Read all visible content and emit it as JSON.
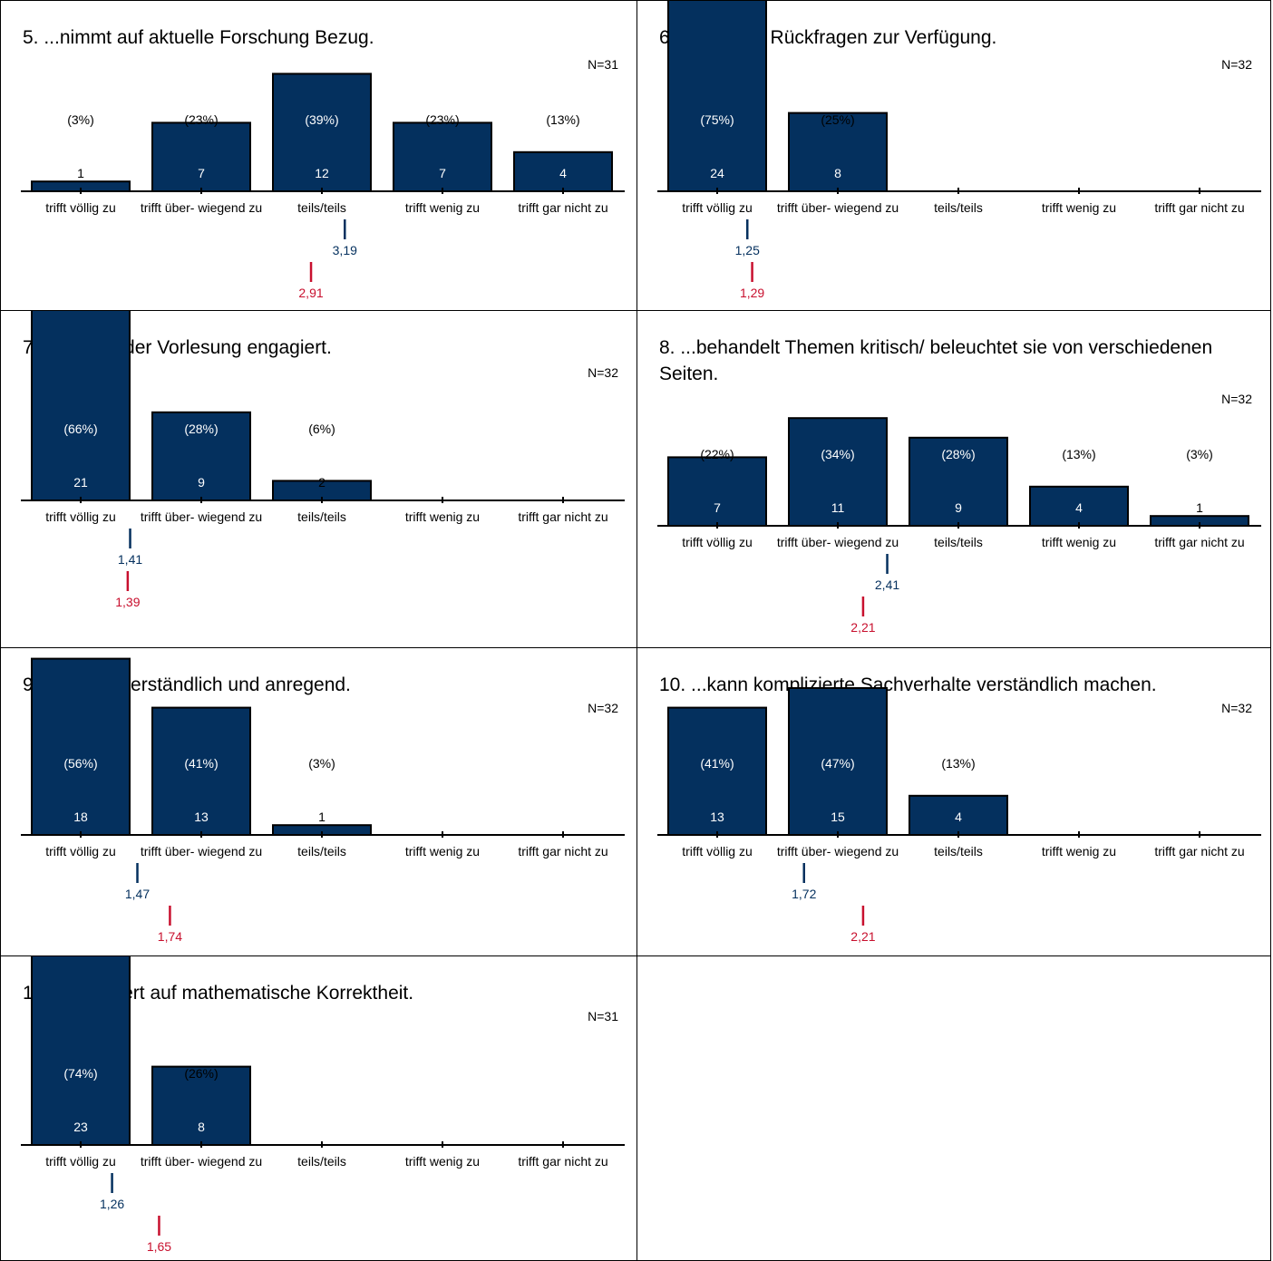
{
  "categories": [
    "trifft völlig zu",
    "trifft über- wiegend zu",
    "teils/teils",
    "trifft wenig zu",
    "trifft gar nicht zu"
  ],
  "colors": {
    "bar": "#04305e",
    "bar_edge": "#000000",
    "mean_current": "#04305e",
    "mean_previous": "#c8102e"
  },
  "chart_data": [
    {
      "type": "bar",
      "title": "5. ...nimmt auf aktuelle Forschung Bezug.",
      "n_label": "N=31",
      "values": [
        1,
        7,
        12,
        7,
        4
      ],
      "percents": [
        "(3%)",
        "(23%)",
        "(39%)",
        "(23%)",
        "(13%)"
      ],
      "mean": {
        "value": 3.19,
        "label": "3,19"
      },
      "mean_previous": {
        "value": 2.91,
        "label": "2,91"
      }
    },
    {
      "type": "bar",
      "title": "6. ...steht für Rückfragen zur Verfügung.",
      "n_label": "N=32",
      "values": [
        24,
        8,
        0,
        0,
        0
      ],
      "percents": [
        "(75%)",
        "(25%)",
        "",
        "",
        ""
      ],
      "mean": {
        "value": 1.25,
        "label": "1,25"
      },
      "mean_previous": {
        "value": 1.29,
        "label": "1,29"
      }
    },
    {
      "type": "bar",
      "title": "7. ...wirkt in der Vorlesung engagiert.",
      "n_label": "N=32",
      "values": [
        21,
        9,
        2,
        0,
        0
      ],
      "percents": [
        "(66%)",
        "(28%)",
        "(6%)",
        "",
        ""
      ],
      "mean": {
        "value": 1.41,
        "label": "1,41"
      },
      "mean_previous": {
        "value": 1.39,
        "label": "1,39"
      }
    },
    {
      "type": "bar",
      "title": "8. ...behandelt Themen kritisch/ beleuchtet sie von verschiedenen Seiten.",
      "n_label": "N=32",
      "values": [
        7,
        11,
        9,
        4,
        1
      ],
      "percents": [
        "(22%)",
        "(34%)",
        "(28%)",
        "(13%)",
        "(3%)"
      ],
      "mean": {
        "value": 2.41,
        "label": "2,41"
      },
      "mean_previous": {
        "value": 2.21,
        "label": "2,21"
      }
    },
    {
      "type": "bar",
      "title": "9. ...spricht verständlich und anregend.",
      "n_label": "N=32",
      "values": [
        18,
        13,
        1,
        0,
        0
      ],
      "percents": [
        "(56%)",
        "(41%)",
        "(3%)",
        "",
        ""
      ],
      "mean": {
        "value": 1.47,
        "label": "1,47"
      },
      "mean_previous": {
        "value": 1.74,
        "label": "1,74"
      }
    },
    {
      "type": "bar",
      "title": "10. ...kann komplizierte Sachverhalte verständlich machen.",
      "n_label": "N=32",
      "values": [
        13,
        15,
        4,
        0,
        0
      ],
      "percents": [
        "(41%)",
        "(47%)",
        "(13%)",
        "",
        ""
      ],
      "mean": {
        "value": 1.72,
        "label": "1,72"
      },
      "mean_previous": {
        "value": 2.21,
        "label": "2,21"
      }
    },
    {
      "type": "bar",
      "title": "11. ...legt Wert auf mathematische Korrektheit.",
      "n_label": "N=31",
      "values": [
        23,
        8,
        0,
        0,
        0
      ],
      "percents": [
        "(74%)",
        "(26%)",
        "",
        "",
        ""
      ],
      "mean": {
        "value": 1.26,
        "label": "1,26"
      },
      "mean_previous": {
        "value": 1.65,
        "label": "1,65"
      }
    }
  ]
}
